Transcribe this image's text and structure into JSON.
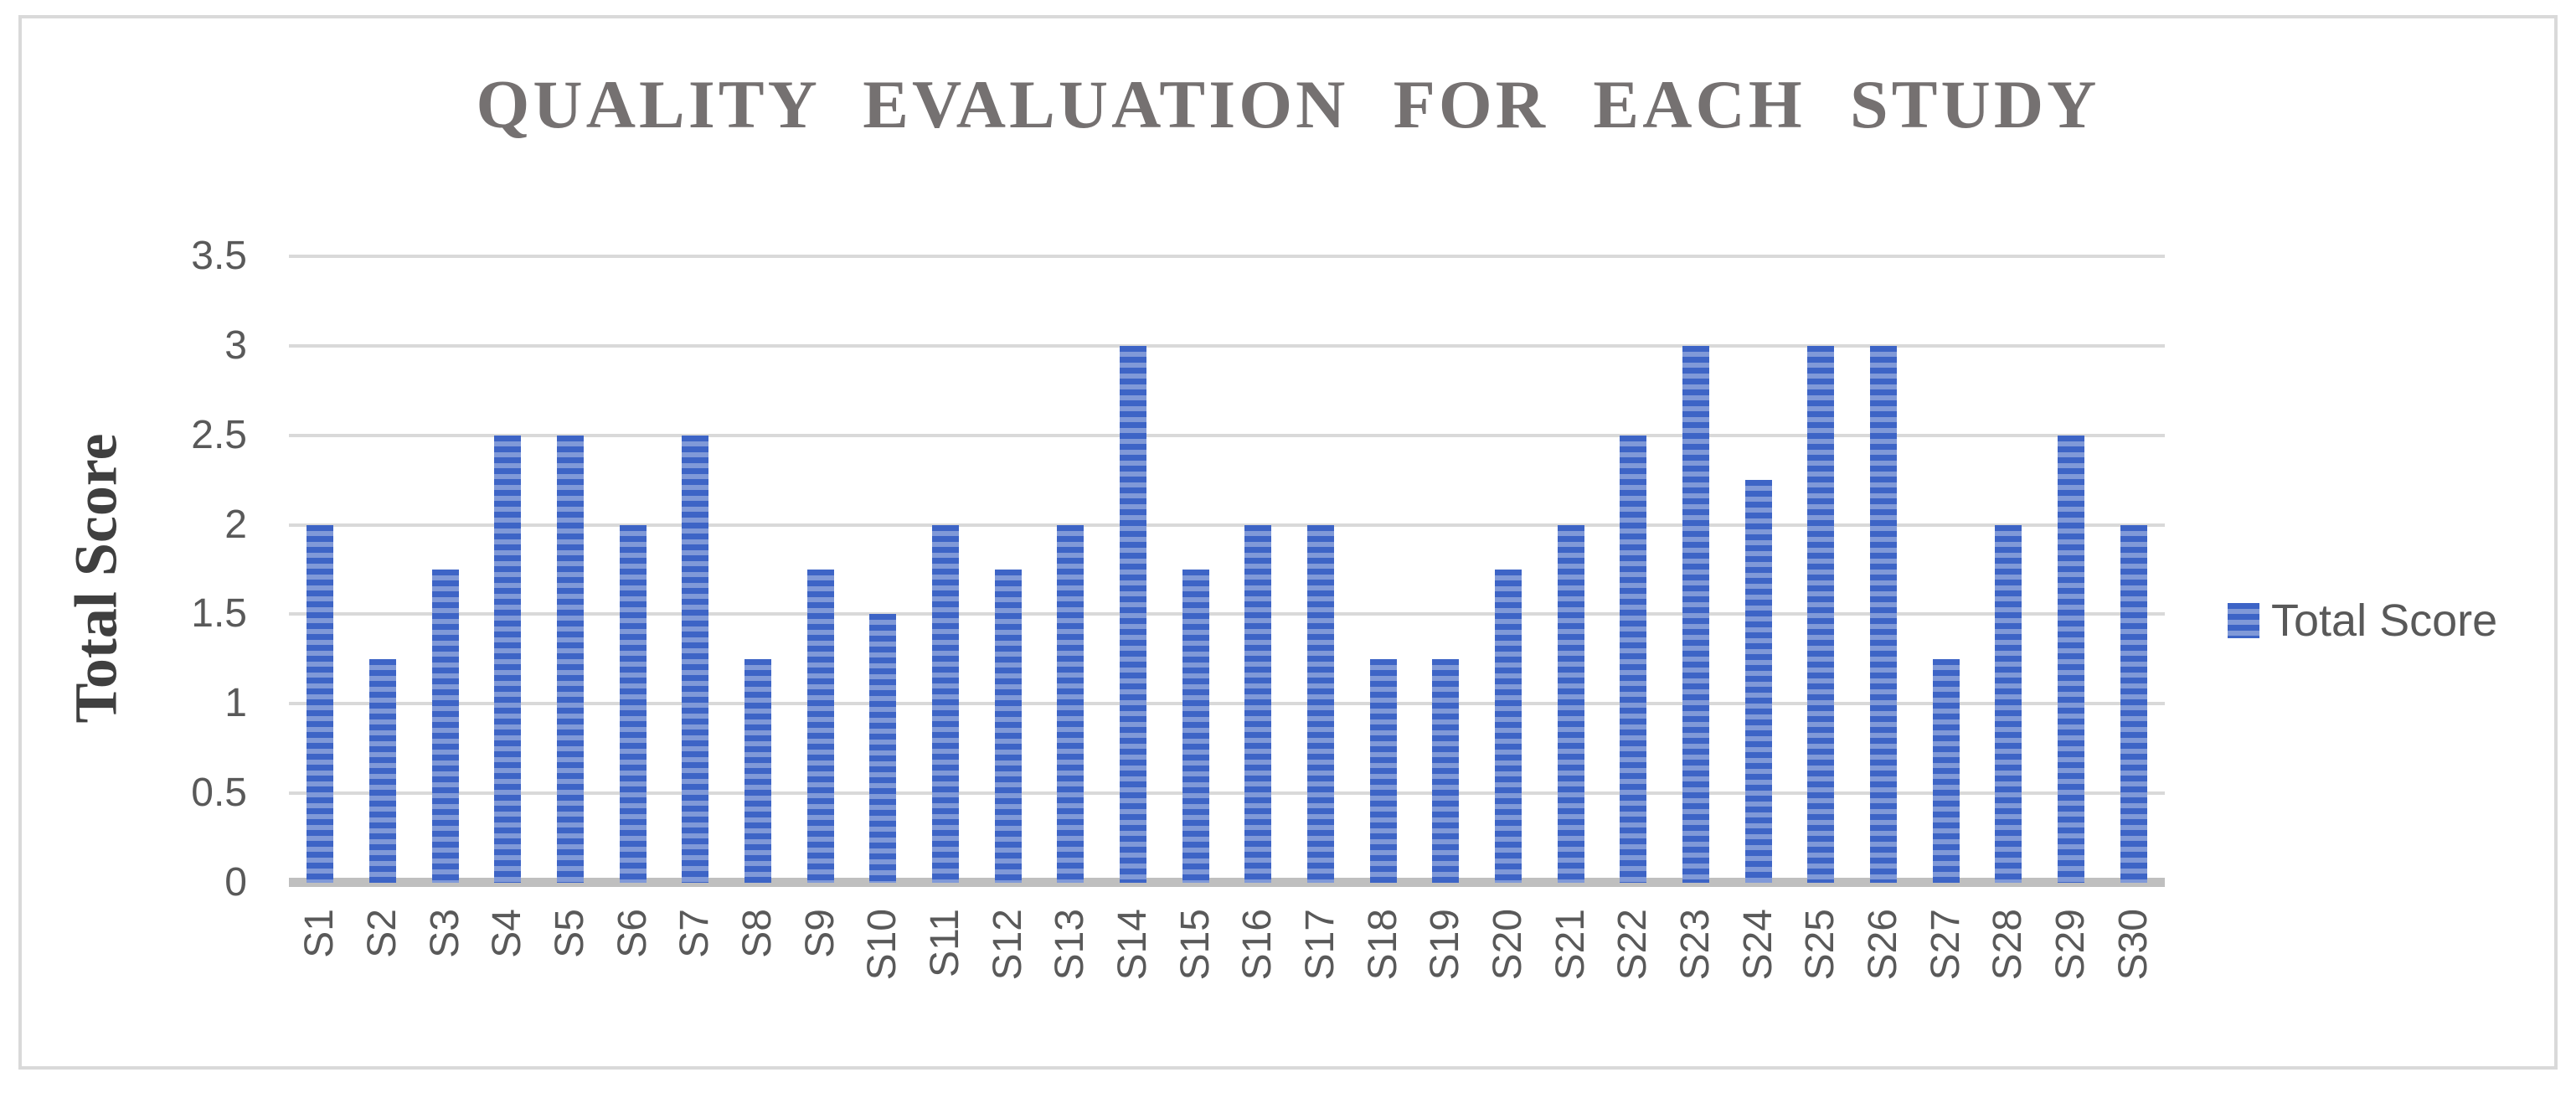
{
  "chart_data": {
    "type": "bar",
    "title": "QUALITY EVALUATION FOR EACH STUDY",
    "xlabel": "",
    "ylabel": "Total Score",
    "categories": [
      "S1",
      "S2",
      "S3",
      "S4",
      "S5",
      "S6",
      "S7",
      "S8",
      "S9",
      "S10",
      "S11",
      "S12",
      "S13",
      "S14",
      "S15",
      "S16",
      "S17",
      "S18",
      "S19",
      "S20",
      "S21",
      "S22",
      "S23",
      "S24",
      "S25",
      "S26",
      "S27",
      "S28",
      "S29",
      "S30"
    ],
    "series": [
      {
        "name": "Total Score",
        "values": [
          2,
          1.25,
          1.75,
          2.5,
          2.5,
          2,
          2.5,
          1.25,
          1.75,
          1.5,
          2,
          1.75,
          2,
          3,
          1.75,
          2,
          2,
          1.25,
          1.25,
          1.75,
          2,
          2.5,
          3,
          2.25,
          3,
          3,
          1.25,
          2,
          2.5,
          2
        ]
      }
    ],
    "ylim": [
      0,
      3.5
    ],
    "ytick_step": 0.5,
    "ytick_labels": [
      "3.5",
      "3",
      "2.5",
      "2",
      "1.5",
      "1",
      "0.5",
      "0"
    ],
    "grid": true,
    "legend": {
      "position": "right",
      "label": "Total Score"
    }
  },
  "colors": {
    "bar_stripe_dark": "#3d64c6",
    "bar_stripe_light": "#8099d8",
    "gridline": "#d9d9d9",
    "axis_line": "#bfbfbf",
    "tick_text": "#595959",
    "title_text": "#757171",
    "y_axis_title_text": "#3f3f3f",
    "frame_border": "#d9d9d9",
    "background": "#ffffff"
  }
}
